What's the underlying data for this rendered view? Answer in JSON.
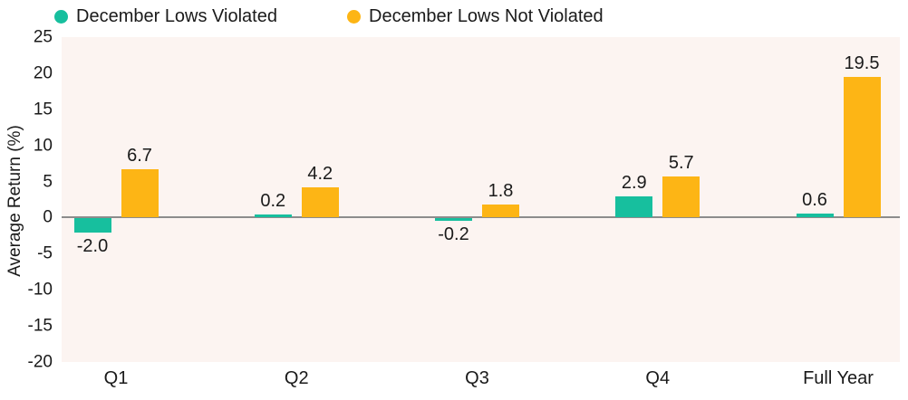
{
  "chart_data": {
    "type": "bar",
    "categories": [
      "Q1",
      "Q2",
      "Q3",
      "Q4",
      "Full Year"
    ],
    "series": [
      {
        "name": "December Lows Violated",
        "color": "#17BF9E",
        "values": [
          -2.0,
          0.2,
          -0.2,
          2.9,
          0.6
        ]
      },
      {
        "name": "December Lows Not Violated",
        "color": "#FDB515",
        "values": [
          6.7,
          4.2,
          1.8,
          5.7,
          19.5
        ]
      }
    ],
    "value_labels": {
      "December Lows Violated": [
        "-2.0",
        "0.2",
        "-0.2",
        "2.9",
        "0.6"
      ],
      "December Lows Not Violated": [
        "6.7",
        "4.2",
        "1.8",
        "5.7",
        "19.5"
      ]
    },
    "title": "",
    "xlabel": "",
    "ylabel": "Average Return (%)",
    "ylim": [
      -20,
      25
    ],
    "yticks": [
      25,
      20,
      15,
      10,
      5,
      0,
      -5,
      -10,
      -15,
      -20
    ],
    "grid": false,
    "legend_position": "top",
    "colors": {
      "plot_background": "#FCF4F1",
      "zero_line": "#8C8C8C",
      "text": "#1A1A1A"
    }
  }
}
